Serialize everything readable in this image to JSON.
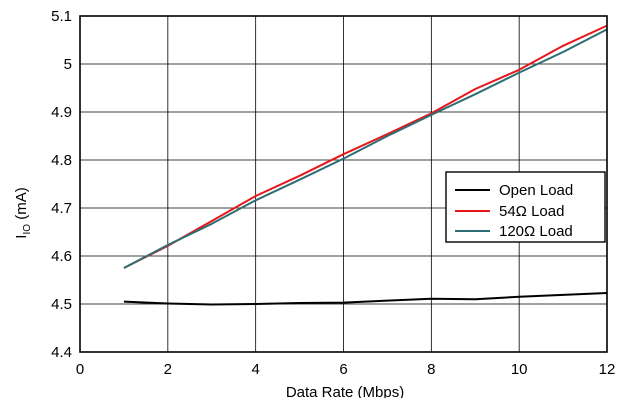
{
  "chart_data": {
    "type": "line",
    "title": "",
    "xlabel": "Data Rate (Mbps)",
    "ylabel_main": "I",
    "ylabel_sub": "IO",
    "ylabel_unit": " (mA)",
    "xlim": [
      0,
      12
    ],
    "ylim": [
      4.4,
      5.1
    ],
    "x_ticks": [
      0,
      2,
      4,
      6,
      8,
      10,
      12
    ],
    "x_tick_labels": [
      "0",
      "2",
      "4",
      "6",
      "8",
      "10",
      "12"
    ],
    "y_ticks": [
      4.4,
      4.5,
      4.6,
      4.7,
      4.8,
      4.9,
      5.0,
      5.1
    ],
    "y_tick_labels": [
      "4.4",
      "4.5",
      "4.6",
      "4.7",
      "4.8",
      "4.9",
      "5",
      "5.1"
    ],
    "grid": true,
    "legend_position": "right",
    "series": [
      {
        "name": "Open Load",
        "color": "#000000",
        "x": [
          1,
          2,
          3,
          4,
          5,
          6,
          7,
          8,
          9,
          10,
          11,
          12
        ],
        "y": [
          4.505,
          4.501,
          4.499,
          4.5,
          4.502,
          4.503,
          4.507,
          4.511,
          4.51,
          4.515,
          4.519,
          4.523
        ]
      },
      {
        "name": "54Ω Load",
        "color": "#e8161b",
        "x": [
          1,
          2,
          3,
          4,
          5,
          6,
          7,
          8,
          9,
          10,
          11,
          12
        ],
        "y": [
          4.575,
          4.621,
          4.673,
          4.725,
          4.767,
          4.812,
          4.854,
          4.897,
          4.948,
          4.988,
          5.038,
          5.08
        ]
      },
      {
        "name": "120Ω Load",
        "color": "#2d6e74",
        "x": [
          1,
          2,
          3,
          4,
          5,
          6,
          7,
          8,
          9,
          10,
          11,
          12
        ],
        "y": [
          4.575,
          4.623,
          4.667,
          4.716,
          4.759,
          4.803,
          4.85,
          4.894,
          4.937,
          4.982,
          5.025,
          5.072
        ]
      }
    ]
  }
}
